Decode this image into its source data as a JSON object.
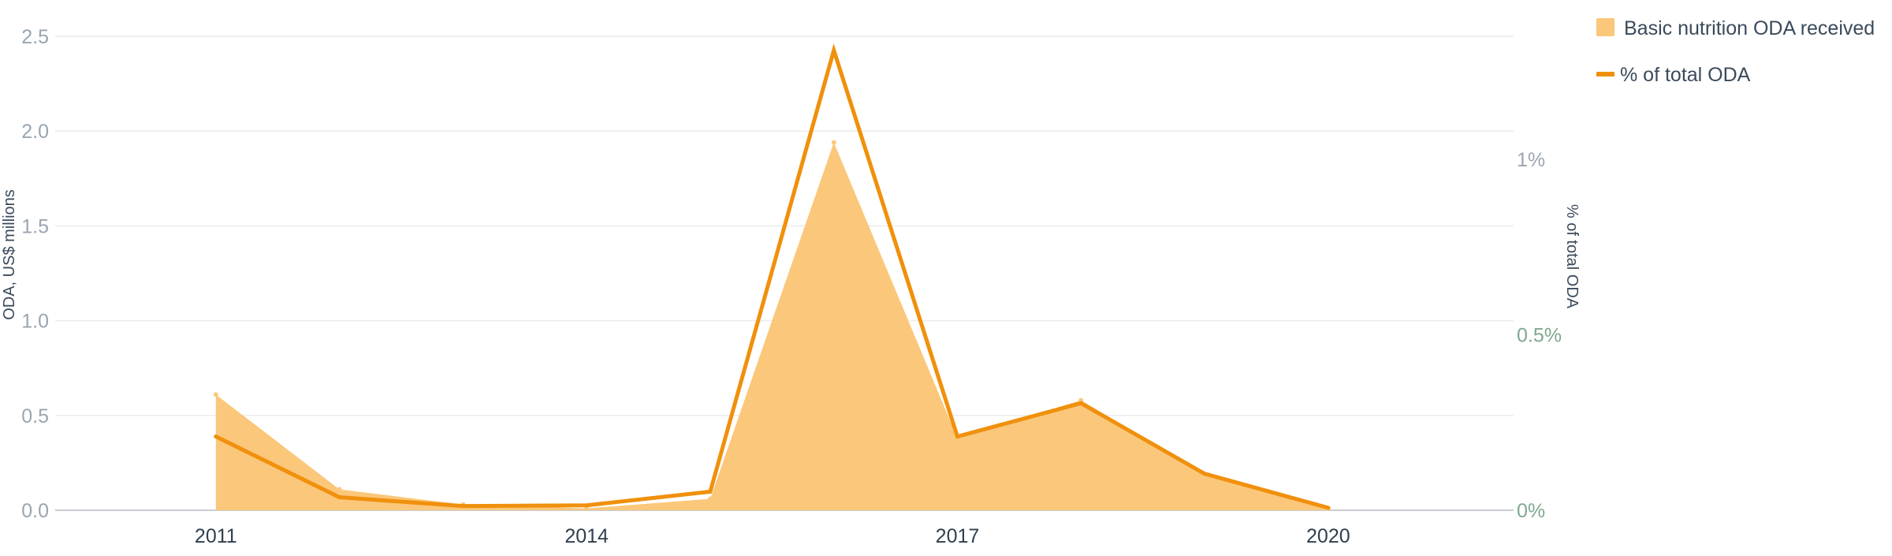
{
  "chart_data": {
    "type": "area",
    "title": "",
    "x": [
      2011,
      2012,
      2013,
      2014,
      2015,
      2016,
      2017,
      2018,
      2019,
      2020
    ],
    "x_tick_labels": [
      "2011",
      "2014",
      "2017",
      "2020"
    ],
    "x_tick_values": [
      2011,
      2014,
      2017,
      2020
    ],
    "xlim": [
      2009.7,
      2021.5
    ],
    "series": [
      {
        "name": "Basic nutrition ODA received",
        "kind": "area",
        "axis": "left",
        "color": "#fbc77a",
        "values": [
          0.61,
          0.11,
          0.03,
          0.01,
          0.06,
          1.94,
          0.38,
          0.58,
          0.19,
          0.01
        ]
      },
      {
        "name": "% of total ODA",
        "kind": "line",
        "axis": "right",
        "color": "#f0900c",
        "values": [
          0.21,
          0.037,
          0.012,
          0.014,
          0.053,
          1.31,
          0.21,
          0.305,
          0.104,
          0.007
        ]
      }
    ],
    "left_axis": {
      "label": "ODA, US$ millions",
      "ylim": [
        0,
        2.5
      ],
      "ticks": [
        0,
        0.5,
        1.0,
        1.5,
        2.0,
        2.5
      ],
      "tick_labels": [
        "0.0",
        "0.5",
        "1.0",
        "1.5",
        "2.0",
        "2.5"
      ]
    },
    "right_axis": {
      "label": "% of total ODA",
      "ylim": [
        0,
        1.35
      ],
      "ticks": [
        0,
        0.5,
        1
      ],
      "tick_labels": [
        "0%",
        "0.5%",
        "1%"
      ]
    },
    "grid": true,
    "legend_position": "top-right",
    "colors": {
      "grid": "#ececec",
      "baseline": "#c8cdd2",
      "left_ticks": "#9aa5b1",
      "right_ticks_low": "#7fa88f",
      "right_ticks_top": "#9aa5b1",
      "x_ticks": "#2f3f4f",
      "axis_titles": "#3b4a5a"
    }
  }
}
